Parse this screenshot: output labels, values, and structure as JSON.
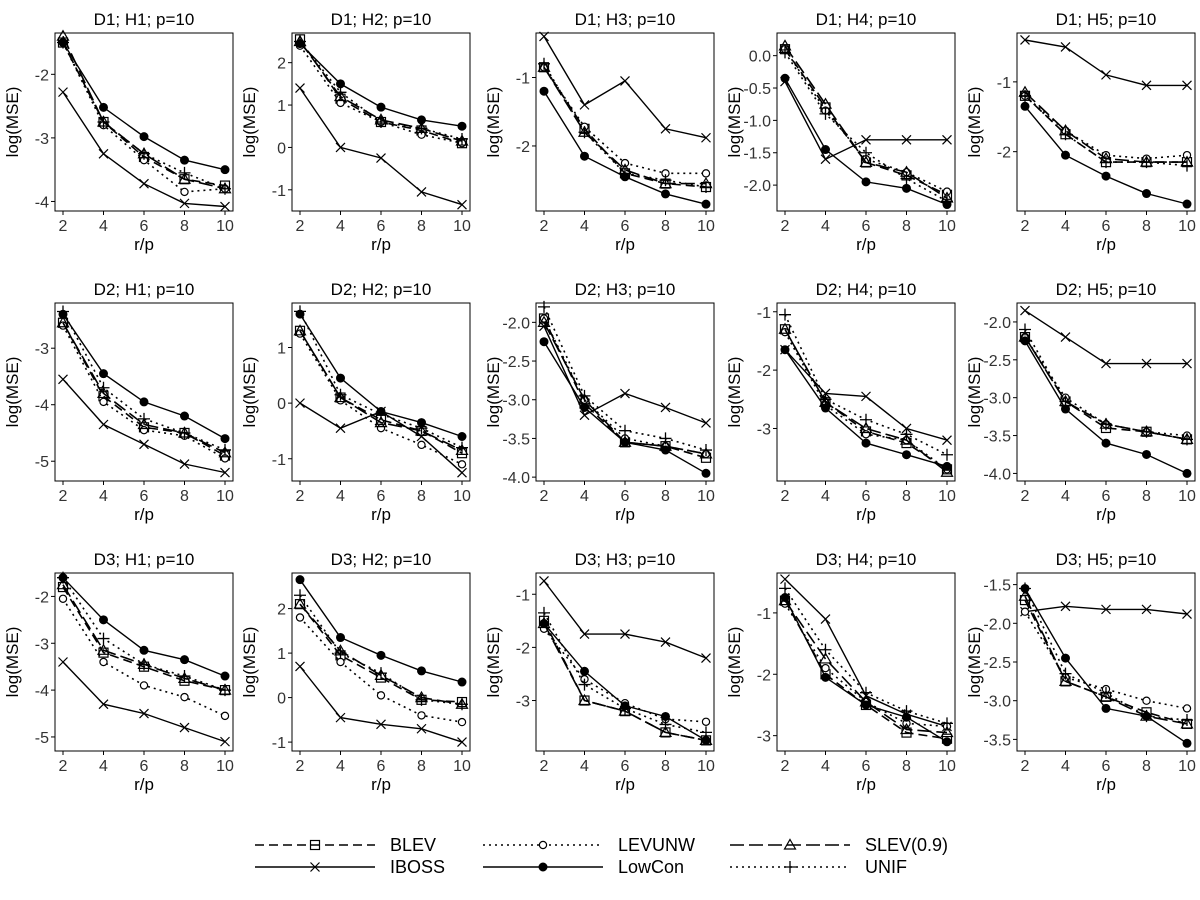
{
  "figure": {
    "xlabel": "r/p",
    "ylabel": "log(MSE)"
  },
  "chart_data": {
    "type": "line",
    "x": [
      2,
      4,
      6,
      8,
      10
    ],
    "x_ticks": [
      "2",
      "4",
      "6",
      "8",
      "10"
    ],
    "legend": {
      "placement": "bottom",
      "entries": [
        {
          "name": "BLEV",
          "line": "dashed",
          "marker": "square"
        },
        {
          "name": "IBOSS",
          "line": "solid",
          "marker": "x"
        },
        {
          "name": "LEVUNW",
          "line": "dotted",
          "marker": "circle-open"
        },
        {
          "name": "LowCon",
          "line": "solid",
          "marker": "circle-filled"
        },
        {
          "name": "SLEV(0.9)",
          "line": "longdash",
          "marker": "triangle"
        },
        {
          "name": "UNIF",
          "line": "dotted",
          "marker": "plus"
        }
      ]
    },
    "panels": [
      {
        "title": "D1; H1; p=10",
        "ylim": [
          -4.15,
          -1.35
        ],
        "yticks": [
          -4,
          -3,
          -2
        ],
        "ytick_labels": [
          "-4",
          "-3",
          "-2"
        ],
        "series": {
          "BLEV": [
            -1.5,
            -2.75,
            -3.3,
            -3.65,
            -3.75
          ],
          "IBOSS": [
            -2.28,
            -3.25,
            -3.72,
            -4.03,
            -4.08
          ],
          "LEVUNW": [
            -1.5,
            -2.8,
            -3.35,
            -3.85,
            -3.8
          ],
          "LowCon": [
            -1.5,
            -2.52,
            -2.98,
            -3.35,
            -3.5
          ],
          "SLEV(0.9)": [
            -1.4,
            -2.75,
            -3.25,
            -3.65,
            -3.8
          ],
          "UNIF": [
            -1.5,
            -2.75,
            -3.25,
            -3.55,
            -3.8
          ]
        }
      },
      {
        "title": "D1; H2; p=10",
        "ylim": [
          -1.5,
          2.7
        ],
        "yticks": [
          -1,
          0,
          1,
          2
        ],
        "ytick_labels": [
          "-1",
          "0",
          "1",
          "2"
        ],
        "series": {
          "BLEV": [
            2.55,
            1.15,
            0.6,
            0.4,
            0.1
          ],
          "IBOSS": [
            1.4,
            0.0,
            -0.25,
            -1.05,
            -1.35
          ],
          "LEVUNW": [
            2.4,
            1.05,
            0.6,
            0.3,
            0.1
          ],
          "LowCon": [
            2.45,
            1.5,
            0.95,
            0.65,
            0.5
          ],
          "SLEV(0.9)": [
            2.5,
            1.2,
            0.65,
            0.45,
            0.15
          ],
          "UNIF": [
            2.5,
            1.3,
            0.6,
            0.45,
            0.2
          ]
        }
      },
      {
        "title": "D1; H3; p=10",
        "ylim": [
          -2.95,
          -0.35
        ],
        "yticks": [
          -2,
          -1
        ],
        "ytick_labels": [
          "-2",
          "-1"
        ],
        "series": {
          "BLEV": [
            -0.85,
            -1.75,
            -2.4,
            -2.55,
            -2.6
          ],
          "IBOSS": [
            -0.4,
            -1.4,
            -1.05,
            -1.75,
            -1.88
          ],
          "LEVUNW": [
            -0.85,
            -1.72,
            -2.25,
            -2.4,
            -2.4
          ],
          "LowCon": [
            -1.2,
            -2.15,
            -2.45,
            -2.7,
            -2.85
          ],
          "SLEV(0.9)": [
            -0.85,
            -1.8,
            -2.35,
            -2.55,
            -2.55
          ],
          "UNIF": [
            -0.8,
            -1.8,
            -2.4,
            -2.5,
            -2.6
          ]
        }
      },
      {
        "title": "D1; H4; p=10",
        "ylim": [
          -2.4,
          0.35
        ],
        "yticks": [
          -2.0,
          -1.5,
          -1.0,
          -0.5,
          0.0
        ],
        "ytick_labels": [
          "-2.0",
          "-1.5",
          "-1.0",
          "-0.5",
          "0.0"
        ],
        "series": {
          "BLEV": [
            0.1,
            -0.8,
            -1.65,
            -1.85,
            -2.15
          ],
          "IBOSS": [
            -0.4,
            -1.6,
            -1.3,
            -1.3,
            -1.3
          ],
          "LEVUNW": [
            0.1,
            -0.85,
            -1.6,
            -1.8,
            -2.1
          ],
          "LowCon": [
            -0.35,
            -1.45,
            -1.95,
            -2.05,
            -2.3
          ],
          "SLEV(0.9)": [
            0.15,
            -0.75,
            -1.65,
            -1.8,
            -2.2
          ],
          "UNIF": [
            0.05,
            -0.9,
            -1.5,
            -1.9,
            -2.25
          ]
        }
      },
      {
        "title": "D1; H5; p=10",
        "ylim": [
          -2.85,
          -0.3
        ],
        "yticks": [
          -2,
          -1
        ],
        "ytick_labels": [
          "-2",
          "-1"
        ],
        "series": {
          "BLEV": [
            -1.2,
            -1.75,
            -2.15,
            -2.15,
            -2.15
          ],
          "IBOSS": [
            -0.4,
            -0.5,
            -0.9,
            -1.05,
            -1.05
          ],
          "LEVUNW": [
            -1.2,
            -1.7,
            -2.05,
            -2.1,
            -2.05
          ],
          "LowCon": [
            -1.35,
            -2.05,
            -2.35,
            -2.6,
            -2.75
          ],
          "SLEV(0.9)": [
            -1.15,
            -1.7,
            -2.1,
            -2.15,
            -2.15
          ],
          "UNIF": [
            -1.2,
            -1.75,
            -2.15,
            -2.15,
            -2.2
          ]
        }
      },
      {
        "title": "D2; H1; p=10",
        "ylim": [
          -5.35,
          -2.2
        ],
        "yticks": [
          -5,
          -4,
          -3
        ],
        "ytick_labels": [
          "-5",
          "-4",
          "-3"
        ],
        "series": {
          "BLEV": [
            -2.55,
            -3.85,
            -4.4,
            -4.5,
            -4.9
          ],
          "IBOSS": [
            -3.55,
            -4.35,
            -4.7,
            -5.05,
            -5.2
          ],
          "LEVUNW": [
            -2.6,
            -3.95,
            -4.45,
            -4.55,
            -4.95
          ],
          "LowCon": [
            -2.4,
            -3.45,
            -3.95,
            -4.2,
            -4.6
          ],
          "SLEV(0.9)": [
            -2.55,
            -3.8,
            -4.35,
            -4.5,
            -4.85
          ],
          "UNIF": [
            -2.35,
            -3.7,
            -4.25,
            -4.5,
            -4.8
          ]
        }
      },
      {
        "title": "D2; H2; p=10",
        "ylim": [
          -1.4,
          1.8
        ],
        "yticks": [
          -1,
          0,
          1
        ],
        "ytick_labels": [
          "-1",
          "0",
          "1"
        ],
        "series": {
          "BLEV": [
            1.3,
            0.1,
            -0.3,
            -0.5,
            -0.9
          ],
          "IBOSS": [
            0.0,
            -0.45,
            -0.15,
            -0.6,
            -1.25
          ],
          "LEVUNW": [
            1.25,
            0.05,
            -0.45,
            -0.75,
            -1.1
          ],
          "LowCon": [
            1.6,
            0.45,
            -0.15,
            -0.35,
            -0.6
          ],
          "SLEV(0.9)": [
            1.3,
            0.1,
            -0.35,
            -0.5,
            -0.85
          ],
          "UNIF": [
            1.65,
            0.15,
            -0.2,
            -0.45,
            -0.8
          ]
        }
      },
      {
        "title": "D2; H3; p=10",
        "ylim": [
          -4.05,
          -1.75
        ],
        "yticks": [
          -4.0,
          -3.5,
          -3.0,
          -2.5,
          -2.0
        ],
        "ytick_labels": [
          "-4.0",
          "-3.5",
          "-3.0",
          "-2.5",
          "-2.0"
        ],
        "series": {
          "BLEV": [
            -1.95,
            -3.05,
            -3.55,
            -3.6,
            -3.75
          ],
          "IBOSS": [
            -2.05,
            -3.2,
            -2.92,
            -3.1,
            -3.3
          ],
          "LEVUNW": [
            -1.95,
            -3.0,
            -3.5,
            -3.6,
            -3.7
          ],
          "LowCon": [
            -2.25,
            -3.1,
            -3.55,
            -3.65,
            -3.95
          ],
          "SLEV(0.9)": [
            -2.0,
            -3.0,
            -3.55,
            -3.6,
            -3.7
          ],
          "UNIF": [
            -1.8,
            -2.95,
            -3.4,
            -3.5,
            -3.65
          ]
        }
      },
      {
        "title": "D2; H4; p=10",
        "ylim": [
          -3.9,
          -0.85
        ],
        "yticks": [
          -3,
          -2,
          -1
        ],
        "ytick_labels": [
          "-3",
          "-2",
          "-1"
        ],
        "series": {
          "BLEV": [
            -1.3,
            -2.55,
            -3.05,
            -3.25,
            -3.7
          ],
          "IBOSS": [
            -1.65,
            -2.4,
            -2.45,
            -3.0,
            -3.2
          ],
          "LEVUNW": [
            -1.35,
            -2.6,
            -3.1,
            -3.2,
            -3.7
          ],
          "LowCon": [
            -1.65,
            -2.65,
            -3.25,
            -3.45,
            -3.65
          ],
          "SLEV(0.9)": [
            -1.3,
            -2.55,
            -3.0,
            -3.2,
            -3.75
          ],
          "UNIF": [
            -1.05,
            -2.5,
            -2.85,
            -3.1,
            -3.45
          ]
        }
      },
      {
        "title": "D2; H5; p=10",
        "ylim": [
          -4.1,
          -1.75
        ],
        "yticks": [
          -4.0,
          -3.5,
          -3.0,
          -2.5,
          -2.0
        ],
        "ytick_labels": [
          "-4.0",
          "-3.5",
          "-3.0",
          "-2.5",
          "-2.0"
        ],
        "series": {
          "BLEV": [
            -2.2,
            -3.05,
            -3.4,
            -3.45,
            -3.55
          ],
          "IBOSS": [
            -1.85,
            -2.2,
            -2.55,
            -2.55,
            -2.55
          ],
          "LEVUNW": [
            -2.2,
            -3.0,
            -3.35,
            -3.45,
            -3.5
          ],
          "LowCon": [
            -2.25,
            -3.15,
            -3.6,
            -3.75,
            -4.0
          ],
          "SLEV(0.9)": [
            -2.2,
            -3.05,
            -3.35,
            -3.45,
            -3.55
          ],
          "UNIF": [
            -2.1,
            -3.05,
            -3.35,
            -3.45,
            -3.55
          ]
        }
      },
      {
        "title": "D3; H1; p=10",
        "ylim": [
          -5.3,
          -1.5
        ],
        "yticks": [
          -5,
          -4,
          -3,
          -2
        ],
        "ytick_labels": [
          "-5",
          "-4",
          "-3",
          "-2"
        ],
        "series": {
          "BLEV": [
            -1.8,
            -3.2,
            -3.5,
            -3.8,
            -4.0
          ],
          "IBOSS": [
            -3.4,
            -4.3,
            -4.5,
            -4.8,
            -5.1
          ],
          "LEVUNW": [
            -2.05,
            -3.4,
            -3.9,
            -4.15,
            -4.55
          ],
          "LowCon": [
            -1.6,
            -2.5,
            -3.15,
            -3.35,
            -3.7
          ],
          "SLEV(0.9)": [
            -1.75,
            -3.15,
            -3.45,
            -3.75,
            -4.0
          ],
          "UNIF": [
            -1.6,
            -2.9,
            -3.45,
            -3.7,
            -4.0
          ]
        }
      },
      {
        "title": "D3; H2; p=10",
        "ylim": [
          -1.2,
          2.8
        ],
        "yticks": [
          -1,
          0,
          1,
          2
        ],
        "ytick_labels": [
          "-1",
          "0",
          "1",
          "2"
        ],
        "series": {
          "BLEV": [
            2.1,
            0.95,
            0.45,
            -0.05,
            -0.1
          ],
          "IBOSS": [
            0.7,
            -0.45,
            -0.6,
            -0.7,
            -1.0
          ],
          "LEVUNW": [
            1.8,
            0.8,
            0.05,
            -0.4,
            -0.55
          ],
          "LowCon": [
            2.65,
            1.35,
            0.95,
            0.6,
            0.35
          ],
          "SLEV(0.9)": [
            2.1,
            1.05,
            0.5,
            0.0,
            -0.15
          ],
          "UNIF": [
            2.3,
            1.0,
            0.55,
            -0.05,
            -0.15
          ]
        }
      },
      {
        "title": "D3; H3; p=10",
        "ylim": [
          -3.95,
          -0.6
        ],
        "yticks": [
          -3,
          -2,
          -1
        ],
        "ytick_labels": [
          "-3",
          "-2",
          "-1"
        ],
        "series": {
          "BLEV": [
            -1.5,
            -3.0,
            -3.2,
            -3.6,
            -3.75
          ],
          "IBOSS": [
            -0.75,
            -1.75,
            -1.75,
            -1.9,
            -2.2
          ],
          "LEVUNW": [
            -1.65,
            -2.6,
            -3.05,
            -3.35,
            -3.4
          ],
          "LowCon": [
            -1.55,
            -2.45,
            -3.1,
            -3.3,
            -3.75
          ],
          "SLEV(0.9)": [
            -1.55,
            -3.0,
            -3.2,
            -3.6,
            -3.75
          ],
          "UNIF": [
            -1.35,
            -2.7,
            -3.15,
            -3.45,
            -3.6
          ]
        }
      },
      {
        "title": "D3; H4; p=10",
        "ylim": [
          -3.25,
          -0.35
        ],
        "yticks": [
          -3,
          -2,
          -1
        ],
        "ytick_labels": [
          "-3",
          "-2",
          "-1"
        ],
        "series": {
          "BLEV": [
            -0.8,
            -2.0,
            -2.5,
            -2.95,
            -3.05
          ],
          "IBOSS": [
            -0.45,
            -1.1,
            -2.35,
            -2.65,
            -2.85
          ],
          "LEVUNW": [
            -0.85,
            -1.9,
            -2.45,
            -2.8,
            -2.85
          ],
          "LowCon": [
            -0.75,
            -2.05,
            -2.5,
            -2.7,
            -3.1
          ],
          "SLEV(0.9)": [
            -0.8,
            -1.75,
            -2.45,
            -2.9,
            -2.95
          ],
          "UNIF": [
            -0.6,
            -1.6,
            -2.3,
            -2.6,
            -2.8
          ]
        }
      },
      {
        "title": "D3; H5; p=10",
        "ylim": [
          -3.65,
          -1.35
        ],
        "yticks": [
          -3.5,
          -3.0,
          -2.5,
          -2.0,
          -1.5
        ],
        "ytick_labels": [
          "-3.5",
          "-3.0",
          "-2.5",
          "-2.0",
          "-1.5"
        ],
        "series": {
          "BLEV": [
            -1.7,
            -2.75,
            -2.95,
            -3.15,
            -3.3
          ],
          "IBOSS": [
            -1.85,
            -1.78,
            -1.82,
            -1.82,
            -1.88
          ],
          "LEVUNW": [
            -1.85,
            -2.7,
            -2.85,
            -3.0,
            -3.1
          ],
          "LowCon": [
            -1.55,
            -2.45,
            -3.1,
            -3.2,
            -3.55
          ],
          "SLEV(0.9)": [
            -1.65,
            -2.75,
            -2.95,
            -3.2,
            -3.3
          ],
          "UNIF": [
            -1.55,
            -2.65,
            -2.9,
            -3.2,
            -3.25
          ]
        }
      }
    ]
  }
}
